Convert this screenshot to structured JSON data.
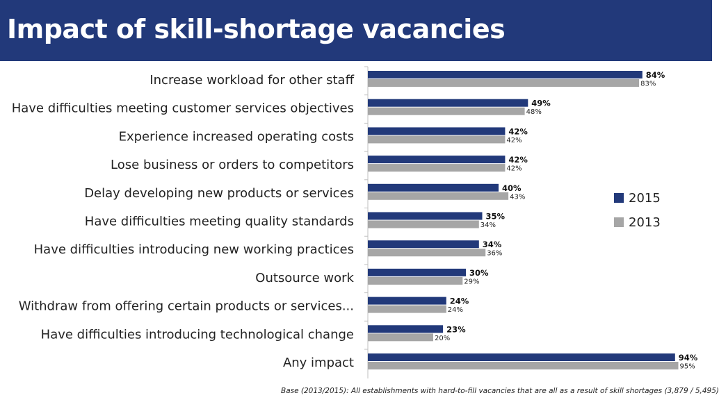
{
  "header": {
    "title": "Impact of skill-shortage vacancies"
  },
  "footnote": "Base (2013/2015): All establishments with hard-to-fill vacancies that are all as a result of skill shortages  (3,879 / 5,495)",
  "colors": {
    "header_bg": "#22397a",
    "series_2015": "#22397a",
    "series_2013": "#a6a6a6"
  },
  "chart_data": {
    "type": "bar",
    "orientation": "horizontal",
    "title": "Impact of skill-shortage vacancies",
    "categories": [
      "Increase workload for other staff",
      "Have difficulties meeting customer services objectives",
      "Experience increased operating costs",
      "Lose business or orders to competitors",
      "Delay developing new products or services",
      "Have difficulties meeting quality standards",
      "Have difficulties introducing new working practices",
      "Outsource work",
      "Withdraw from offering certain products or services...",
      "Have difficulties introducing technological change",
      "Any impact"
    ],
    "series": [
      {
        "name": "2015",
        "color": "#22397a",
        "values": [
          84,
          49,
          42,
          42,
          40,
          35,
          34,
          30,
          24,
          23,
          94
        ]
      },
      {
        "name": "2013",
        "color": "#a6a6a6",
        "values": [
          83,
          48,
          42,
          42,
          43,
          34,
          36,
          29,
          24,
          20,
          95
        ]
      }
    ],
    "value_suffix": "%",
    "xlim": [
      0,
      100
    ],
    "grid": false,
    "legend_position": "right"
  }
}
